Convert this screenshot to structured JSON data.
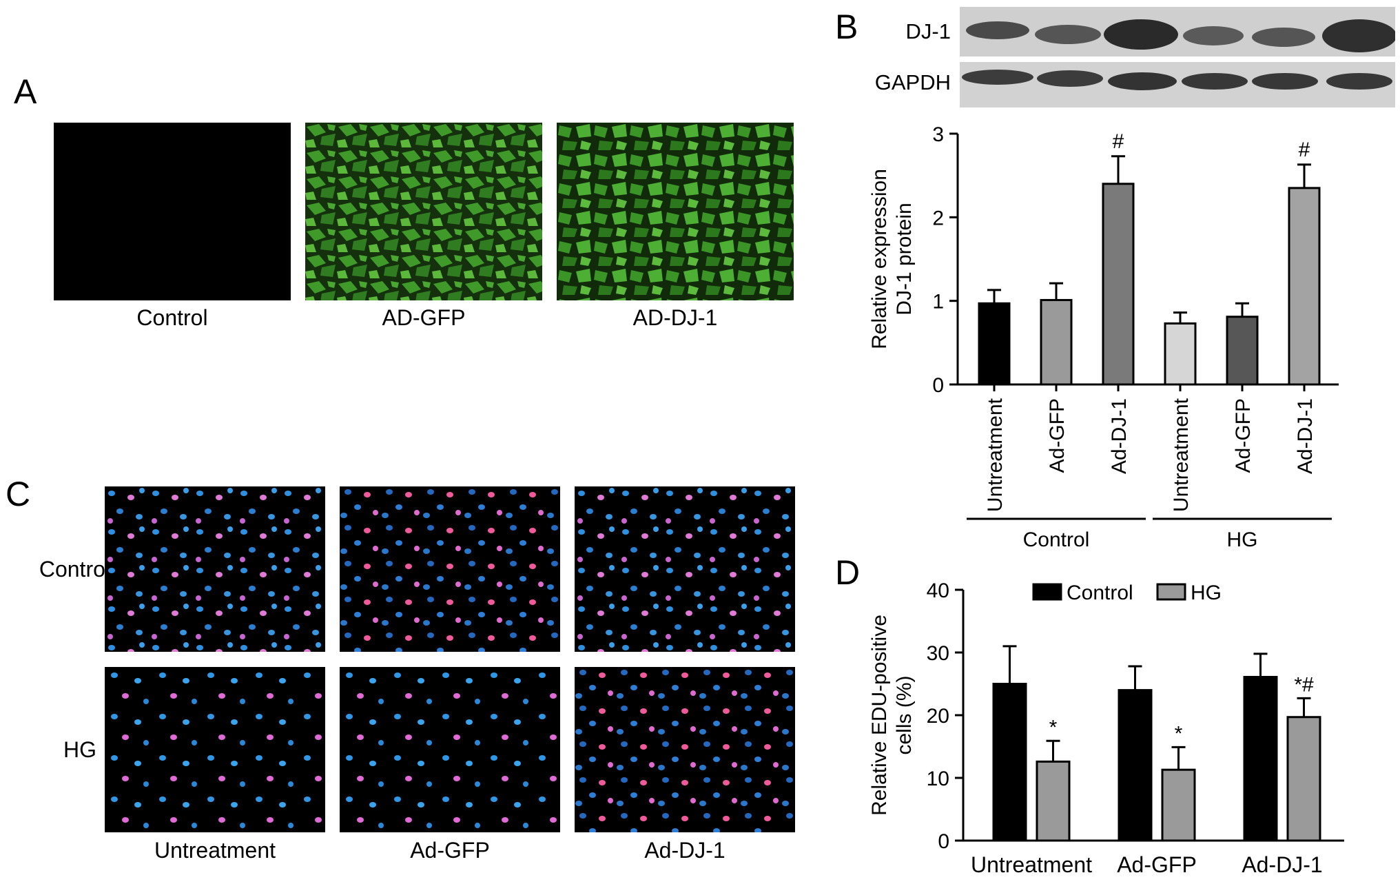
{
  "panel_a": {
    "letter": "A",
    "captions": [
      "Control",
      "AD-GFP",
      "AD-DJ-1"
    ]
  },
  "panel_b": {
    "letter": "B",
    "blot_labels": [
      "DJ-1",
      "GAPDH"
    ]
  },
  "panel_c": {
    "letter": "C",
    "row_labels": [
      "Control",
      "HG"
    ],
    "column_labels": [
      "Untreatment",
      "Ad-GFP",
      "Ad-DJ-1"
    ]
  },
  "panel_d": {
    "letter": "D"
  },
  "chart_data": [
    {
      "id": "B",
      "type": "bar",
      "ylabel": [
        "Relative expression",
        "DJ-1 protein"
      ],
      "ylim": [
        0,
        3
      ],
      "yticks": [
        0,
        1,
        2,
        3
      ],
      "categories": [
        "Untreatment",
        "Ad-GFP",
        "Ad-DJ-1",
        "Untreatment",
        "Ad-GFP",
        "Ad-DJ-1"
      ],
      "values": [
        0.97,
        1.01,
        2.4,
        0.73,
        0.81,
        2.35
      ],
      "errors": [
        0.16,
        0.2,
        0.33,
        0.13,
        0.16,
        0.28
      ],
      "annotations": [
        "",
        "",
        "#",
        "",
        "",
        "#"
      ],
      "bar_colors": [
        "#000000",
        "#9a9a9a",
        "#7a7a7a",
        "#d6d6d6",
        "#575757",
        "#a3a3a3"
      ],
      "groups": [
        {
          "label": "Control",
          "categories": [
            0,
            1,
            2
          ]
        },
        {
          "label": "HG",
          "categories": [
            3,
            4,
            5
          ]
        }
      ]
    },
    {
      "id": "D",
      "type": "bar",
      "ylabel": [
        "Relative EDU-positive",
        "cells (%)"
      ],
      "ylim": [
        0,
        40
      ],
      "yticks": [
        0,
        10,
        20,
        30,
        40
      ],
      "categories": [
        "Untreatment",
        "Ad-GFP",
        "Ad-DJ-1"
      ],
      "series": [
        {
          "name": "Control",
          "color": "#000000",
          "values": [
            25.0,
            24.0,
            26.1
          ],
          "errors": [
            6.0,
            3.8,
            3.7
          ],
          "annotations": [
            "",
            "",
            ""
          ]
        },
        {
          "name": "HG",
          "color": "#9a9a9a",
          "values": [
            12.6,
            11.3,
            19.7
          ],
          "errors": [
            3.3,
            3.6,
            3.0
          ],
          "annotations": [
            "*",
            "*",
            "*#"
          ]
        }
      ],
      "legend_position": "top"
    }
  ]
}
